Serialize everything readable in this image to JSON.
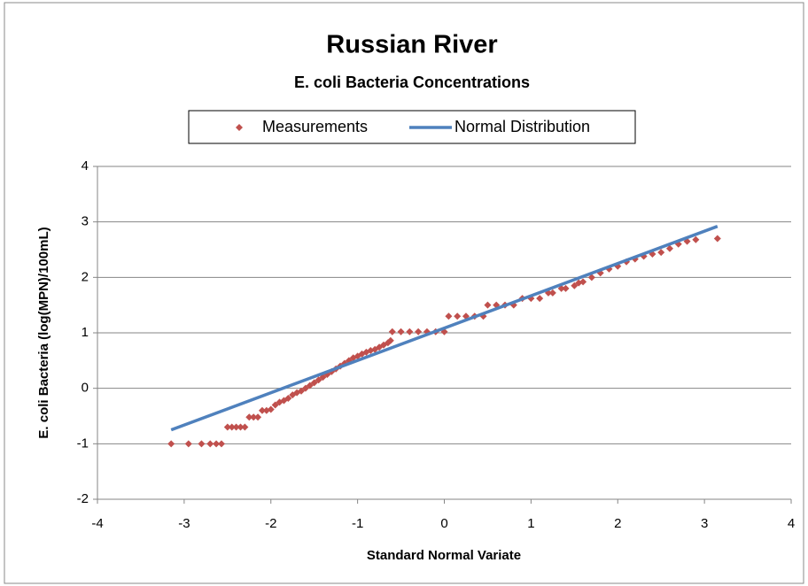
{
  "chart_data": {
    "type": "scatter",
    "title": "Russian River",
    "subtitle": "E. coli Bacteria Concentrations",
    "x_label": "Standard Normal Variate",
    "y_label": "E. coli Bacteria   (log(MPN)/100mL)",
    "xlim": [
      -4,
      4
    ],
    "xticks": [
      -4,
      -3,
      -2,
      -1,
      0,
      1,
      2,
      3,
      4
    ],
    "ylim": [
      -2,
      4
    ],
    "yticks": [
      -2,
      -1,
      0,
      1,
      2,
      3,
      4
    ],
    "grid": true,
    "legend": "top",
    "series": [
      {
        "name": "Measurements",
        "color": "#c0504d",
        "mode": "markers",
        "x": [
          -3.15,
          -2.95,
          -2.8,
          -2.7,
          -2.63,
          -2.57,
          -2.5,
          -2.45,
          -2.4,
          -2.35,
          -2.3,
          -2.25,
          -2.2,
          -2.15,
          -2.1,
          -2.05,
          -2.0,
          -1.95,
          -1.9,
          -1.85,
          -1.8,
          -1.75,
          -1.7,
          -1.65,
          -1.6,
          -1.55,
          -1.5,
          -1.45,
          -1.4,
          -1.35,
          -1.3,
          -1.25,
          -1.2,
          -1.15,
          -1.1,
          -1.05,
          -1.0,
          -0.95,
          -0.9,
          -0.85,
          -0.8,
          -0.75,
          -0.7,
          -0.65,
          -0.62,
          -0.6,
          -0.5,
          -0.4,
          -0.3,
          -0.2,
          -0.1,
          0.0,
          0.05,
          0.15,
          0.25,
          0.35,
          0.45,
          0.5,
          0.6,
          0.7,
          0.8,
          0.9,
          1.0,
          1.1,
          1.2,
          1.25,
          1.35,
          1.4,
          1.5,
          1.55,
          1.6,
          1.7,
          1.8,
          1.9,
          2.0,
          2.1,
          2.2,
          2.3,
          2.4,
          2.5,
          2.6,
          2.7,
          2.8,
          2.9,
          3.15
        ],
        "values": [
          -1,
          -1,
          -1,
          -1,
          -1,
          -1,
          -0.7,
          -0.7,
          -0.7,
          -0.7,
          -0.7,
          -0.52,
          -0.52,
          -0.52,
          -0.4,
          -0.4,
          -0.38,
          -0.3,
          -0.25,
          -0.22,
          -0.18,
          -0.12,
          -0.08,
          -0.05,
          0.0,
          0.05,
          0.1,
          0.15,
          0.2,
          0.25,
          0.3,
          0.35,
          0.4,
          0.45,
          0.5,
          0.55,
          0.58,
          0.62,
          0.65,
          0.68,
          0.7,
          0.74,
          0.78,
          0.82,
          0.86,
          1.02,
          1.02,
          1.02,
          1.02,
          1.02,
          1.02,
          1.02,
          1.3,
          1.3,
          1.3,
          1.3,
          1.3,
          1.5,
          1.5,
          1.5,
          1.5,
          1.62,
          1.62,
          1.62,
          1.72,
          1.72,
          1.8,
          1.8,
          1.85,
          1.9,
          1.92,
          2.0,
          2.08,
          2.15,
          2.2,
          2.28,
          2.33,
          2.38,
          2.42,
          2.45,
          2.52,
          2.6,
          2.65,
          2.68,
          2.7
        ]
      },
      {
        "name": "Normal Distribution",
        "color": "#4f81bd",
        "mode": "line",
        "x": [
          -3.15,
          3.15
        ],
        "values": [
          -0.75,
          2.92
        ]
      }
    ]
  }
}
